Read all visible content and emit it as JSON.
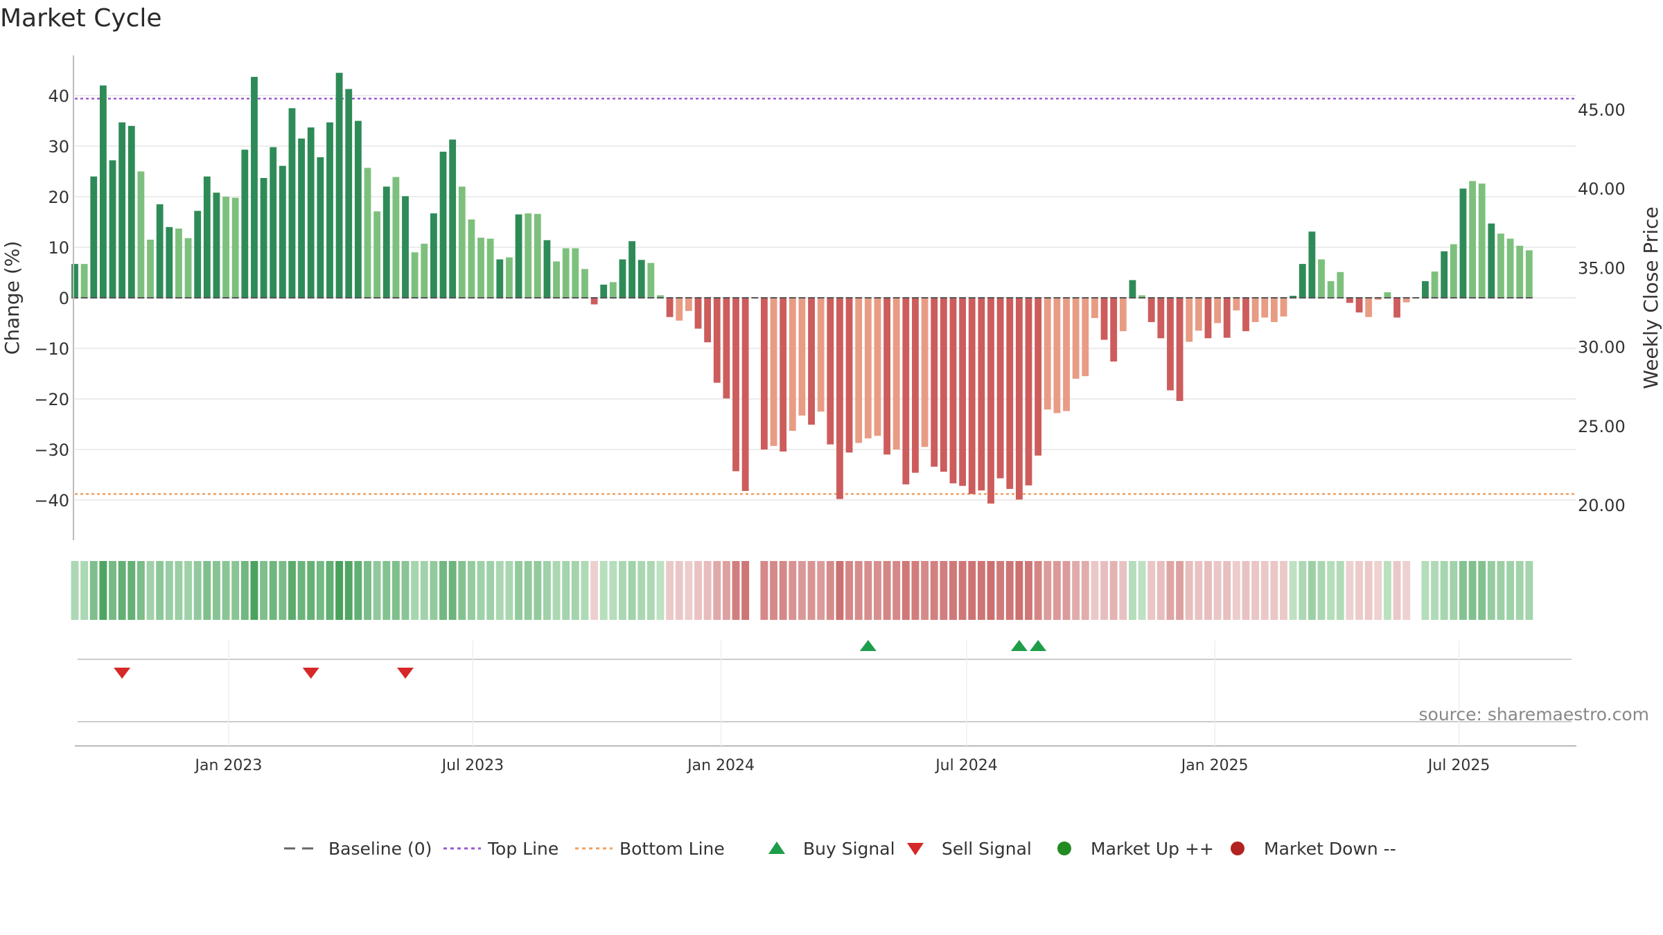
{
  "chart_data": {
    "type": "bar",
    "title": "Market Cycle",
    "ylabel": "Change (%)",
    "y2label": "Weekly Close Price",
    "ylim": [
      -48,
      50
    ],
    "y2lim": [
      17.1,
      49.2
    ],
    "yticks": [
      40,
      30,
      20,
      10,
      0,
      -10,
      -20,
      -30,
      -40
    ],
    "ytick_labels": [
      "40",
      "30",
      "20",
      "10",
      "0",
      "−10",
      "−20",
      "−30",
      "−40"
    ],
    "y2ticks": [
      45,
      40,
      35,
      30,
      25,
      20
    ],
    "y2tick_labels": [
      "45.00",
      "40.00",
      "35.00",
      "30.00",
      "25.00",
      "20.00"
    ],
    "x_start": "2022-09-09",
    "x_end": "2025-09-26",
    "xticks": [
      {
        "date": "2023-01-01",
        "label": "Jan 2023"
      },
      {
        "date": "2023-07-01",
        "label": "Jul 2023"
      },
      {
        "date": "2024-01-01",
        "label": "Jan 2024"
      },
      {
        "date": "2024-07-01",
        "label": "Jul 2024"
      },
      {
        "date": "2025-01-01",
        "label": "Jan 2025"
      },
      {
        "date": "2025-07-01",
        "label": "Jul 2025"
      }
    ],
    "first_week": "2022-09-09",
    "week_step_days": 7,
    "change_pct": [
      6.7,
      6.7,
      24,
      42,
      27.2,
      34.7,
      34,
      25,
      11.5,
      18.5,
      14,
      13.7,
      11.8,
      17.2,
      24,
      20.8,
      20,
      19.8,
      29.3,
      43.7,
      23.7,
      29.8,
      26.1,
      37.5,
      31.5,
      33.7,
      27.8,
      34.7,
      44.5,
      41.3,
      35,
      25.7,
      17.1,
      22,
      23.9,
      20.1,
      9,
      10.7,
      16.7,
      28.9,
      31.3,
      22,
      15.5,
      11.9,
      11.7,
      7.6,
      8,
      16.5,
      16.7,
      16.6,
      11.4,
      7.2,
      9.8,
      9.8,
      5.7,
      -1.3,
      2.6,
      3.1,
      7.6,
      11.2,
      7.5,
      6.9,
      0.5,
      -3.8,
      -4.5,
      -2.6,
      -6.1,
      -8.8,
      -16.8,
      -19.9,
      -34.3,
      -38.2,
      0,
      -30,
      -29.3,
      -30.4,
      -26.3,
      -23.3,
      -25.1,
      -22.5,
      -29,
      -39.8,
      -30.6,
      -28.7,
      -27.8,
      -27.3,
      -31,
      -30,
      -36.9,
      -34.6,
      -29.5,
      -33.4,
      -34.4,
      -36.7,
      -37.2,
      -38.8,
      -38.1,
      -40.7,
      -35.7,
      -37.8,
      -39.9,
      -37.1,
      -31.2,
      -22.1,
      -22.8,
      -22.4,
      -16,
      -15.5,
      -4,
      -8.3,
      -12.6,
      -6.6,
      3.5,
      0.5,
      -4.8,
      -8,
      -18.3,
      -20.4,
      -8.7,
      -6.5,
      -8,
      -5,
      -7.9,
      -2.5,
      -6.6,
      -4.8,
      -3.9,
      -4.8,
      -3.7,
      0.4,
      6.7,
      13.1,
      7.6,
      3.3,
      5.1,
      -1,
      -2.9,
      -3.8,
      -0.4,
      1.1,
      -3.9,
      -0.9,
      0,
      3.3,
      5.2,
      9.2,
      10.6,
      21.6,
      23.1,
      22.6,
      14.7,
      12.7,
      11.7,
      10.3,
      9.4
    ],
    "baseline": 0,
    "top_line": 39.4,
    "bottom_line": -38.8,
    "buy_signal_dates": [
      "2024-04-19",
      "2024-08-09",
      "2024-08-23"
    ],
    "sell_signal_dates": [
      "2022-10-14",
      "2023-03-03",
      "2023-05-12"
    ],
    "colors": {
      "strong_up": "#2e8b57",
      "up": "#7dc07d",
      "down": "#cd5c5c",
      "mild_down": "#e89c84",
      "top_line": "#9b59d0",
      "bottom_line": "#f0a060",
      "buy": "#1e9e4a",
      "sell": "#d62828",
      "market_up": "#228b22",
      "market_down": "#b22222",
      "baseline": "#555555"
    },
    "legend_position": "bottom-center",
    "grid": true
  },
  "legend": [
    {
      "label": "Baseline (0)",
      "kind": "dash",
      "color": "#666666"
    },
    {
      "label": "Top Line",
      "kind": "dot",
      "color": "#9b59d0"
    },
    {
      "label": "Bottom Line",
      "kind": "dot",
      "color": "#f0a060"
    },
    {
      "label": "Buy Signal",
      "kind": "tri-up",
      "color": "#1e9e4a"
    },
    {
      "label": "Sell Signal",
      "kind": "tri-down",
      "color": "#d62828"
    },
    {
      "label": "Market Up ++",
      "kind": "circle",
      "color": "#228b22"
    },
    {
      "label": "Market Down --",
      "kind": "circle",
      "color": "#b22222"
    }
  ],
  "source": "source: sharemaestro.com"
}
